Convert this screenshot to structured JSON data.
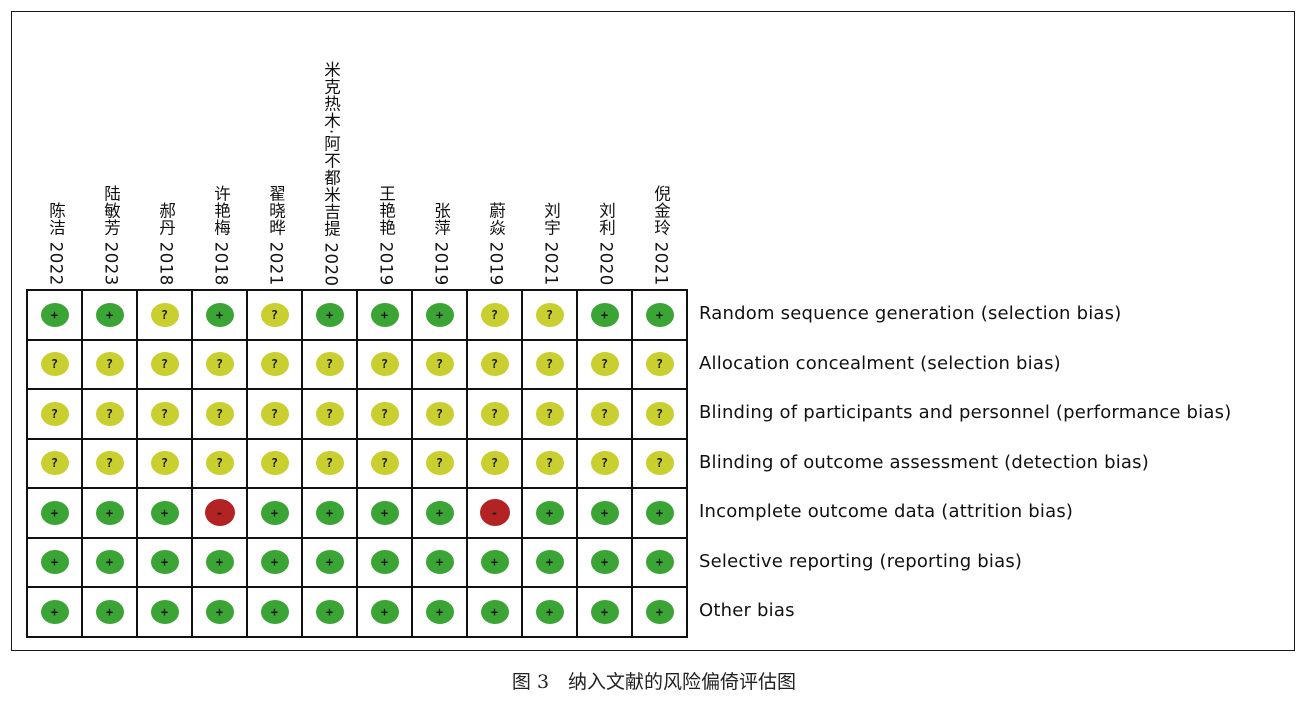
{
  "chart_data": {
    "type": "table",
    "studies": [
      "陈洁 2022",
      "陆敏芳 2023",
      "郝丹 2018",
      "许艳梅 2018",
      "翟晓晔 2021",
      "米克热木·阿不都米吉提 2020",
      "王艳艳 2019",
      "张萍 2019",
      "蔚焱 2019",
      "刘宇 2021",
      "刘利 2020",
      "倪金玲 2021"
    ],
    "domains": [
      "Random sequence generation (selection bias)",
      "Allocation concealment (selection bias)",
      "Blinding of participants and personnel (performance bias)",
      "Blinding of outcome assessment (detection bias)",
      "Incomplete outcome data (attrition bias)",
      "Selective reporting (reporting bias)",
      "Other bias"
    ],
    "judgements": [
      [
        "+",
        "+",
        "?",
        "+",
        "?",
        "+",
        "+",
        "+",
        "?",
        "?",
        "+",
        "+"
      ],
      [
        "?",
        "?",
        "?",
        "?",
        "?",
        "?",
        "?",
        "?",
        "?",
        "?",
        "?",
        "?"
      ],
      [
        "?",
        "?",
        "?",
        "?",
        "?",
        "?",
        "?",
        "?",
        "?",
        "?",
        "?",
        "?"
      ],
      [
        "?",
        "?",
        "?",
        "?",
        "?",
        "?",
        "?",
        "?",
        "?",
        "?",
        "?",
        "?"
      ],
      [
        "+",
        "+",
        "+",
        "-",
        "+",
        "+",
        "+",
        "+",
        "-",
        "+",
        "+",
        "+"
      ],
      [
        "+",
        "+",
        "+",
        "+",
        "+",
        "+",
        "+",
        "+",
        "+",
        "+",
        "+",
        "+"
      ],
      [
        "+",
        "+",
        "+",
        "+",
        "+",
        "+",
        "+",
        "+",
        "+",
        "+",
        "+",
        "+"
      ]
    ],
    "colors": {
      "low": "#3aa534",
      "unclear": "#c8cf2e",
      "high": "#b32323"
    }
  },
  "caption": "图 3　纳入文献的风险偏倚评估图"
}
